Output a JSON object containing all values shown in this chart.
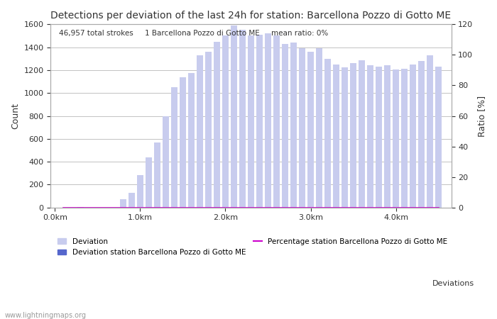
{
  "title": "Detections per deviation of the last 24h for station: Barcellona Pozzo di Gotto ME",
  "annotation": "46,957 total strokes     1 Barcellona Pozzo di Gotto ME     mean ratio: 0%",
  "ylabel_left": "Count",
  "ylabel_right": "Ratio [%]",
  "ylim_left": [
    0,
    1600
  ],
  "ylim_right": [
    0,
    120
  ],
  "yticks_left": [
    0,
    200,
    400,
    600,
    800,
    1000,
    1200,
    1400,
    1600
  ],
  "yticks_right": [
    0,
    20,
    40,
    60,
    80,
    100,
    120
  ],
  "xtick_positions": [
    0.0,
    1.0,
    2.0,
    3.0,
    4.0
  ],
  "xtick_labels": [
    "0.0km",
    "1.0km",
    "2.0km",
    "3.0km",
    "4.0km"
  ],
  "watermark": "www.lightningmaps.org",
  "bar_color_all": "#c8ccee",
  "bar_color_station": "#5566cc",
  "percentage_line_color": "#cc00cc",
  "bar_positions": [
    0.1,
    0.2,
    0.3,
    0.4,
    0.5,
    0.6,
    0.7,
    0.8,
    0.9,
    1.0,
    1.1,
    1.2,
    1.3,
    1.4,
    1.5,
    1.6,
    1.7,
    1.8,
    1.9,
    2.0,
    2.1,
    2.2,
    2.3,
    2.4,
    2.5,
    2.6,
    2.7,
    2.8,
    2.9,
    3.0,
    3.1,
    3.2,
    3.3,
    3.4,
    3.5,
    3.6,
    3.7,
    3.8,
    3.9,
    4.0,
    4.1,
    4.2,
    4.3,
    4.4,
    4.5
  ],
  "bar_heights_all": [
    0,
    0,
    5,
    0,
    0,
    0,
    0,
    70,
    130,
    285,
    440,
    565,
    800,
    1050,
    1140,
    1175,
    1330,
    1360,
    1450,
    1500,
    1590,
    1555,
    1500,
    1510,
    1520,
    1500,
    1430,
    1440,
    1390,
    1360,
    1390,
    1300,
    1250,
    1225,
    1260,
    1285,
    1240,
    1230,
    1240,
    1205,
    1210,
    1250,
    1280,
    1330,
    1230
  ],
  "bar_heights_station": [
    0,
    0,
    0,
    0,
    0,
    0,
    0,
    0,
    0,
    0,
    0,
    0,
    0,
    0,
    0,
    0,
    0,
    0,
    0,
    0,
    0,
    0,
    0,
    0,
    0,
    0,
    0,
    0,
    0,
    0,
    0,
    0,
    0,
    0,
    0,
    0,
    0,
    0,
    0,
    0,
    0,
    0,
    0,
    0,
    0
  ],
  "percentage_values": [
    0,
    0,
    0,
    0,
    0,
    0,
    0,
    0,
    0,
    0,
    0,
    0,
    0,
    0,
    0,
    0,
    0,
    0,
    0,
    0,
    0,
    0,
    0,
    0,
    0,
    0,
    0,
    0,
    0,
    0,
    0,
    0,
    0,
    0,
    0,
    0,
    0,
    0,
    0,
    0,
    0,
    0,
    0,
    0,
    0
  ],
  "bar_width": 0.075,
  "grid_color": "#aaaaaa",
  "background_color": "#ffffff",
  "font_color": "#333333",
  "legend_deviations_label": "Deviations",
  "legend_all_label": "Deviation",
  "legend_station_label": "Deviation station Barcellona Pozzo di Gotto ME",
  "legend_pct_label": "Percentage station Barcellona Pozzo di Gotto ME"
}
